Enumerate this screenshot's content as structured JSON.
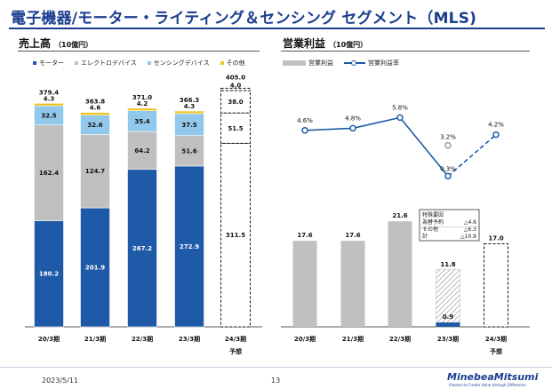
{
  "page": {
    "title": "電子機器/モーター・ライティング＆センシング セグメント（MLS)",
    "footer_date": "2023/5/11",
    "page_number": "13",
    "logo_text": "MinebeaMitsumi",
    "logo_tagline": "Passion to Create Value through Difference"
  },
  "chart_data": [
    {
      "type": "stacked_bar",
      "title": "売上高",
      "unit": "（10億円）",
      "categories": [
        "20/3期",
        "21/3期",
        "22/3期",
        "23/3期",
        "24/3期"
      ],
      "category_notes": [
        "",
        "",
        "",
        "",
        "予想"
      ],
      "forecast_index": 4,
      "series": [
        {
          "name": "モーター",
          "color": "#1f5aa8",
          "values": [
            180.2,
            201.9,
            267.2,
            272.9,
            311.5
          ]
        },
        {
          "name": "エレクトロデバイス",
          "color": "#c0c0c0",
          "values": [
            162.4,
            124.7,
            64.2,
            51.6,
            51.5
          ]
        },
        {
          "name": "センシングデバイス",
          "color": "#92c8ec",
          "values": [
            32.5,
            32.6,
            35.4,
            37.5,
            38.0
          ]
        },
        {
          "name": "その他",
          "color": "#f0c420",
          "values": [
            4.3,
            4.6,
            4.2,
            4.3,
            4.0
          ]
        }
      ],
      "totals": [
        379.4,
        363.8,
        371.0,
        366.3,
        405.0
      ],
      "ylim": [
        0,
        410
      ]
    },
    {
      "type": "bar_line",
      "title": "営業利益",
      "unit": "（10億円）",
      "categories": [
        "20/3期",
        "21/3期",
        "22/3期",
        "23/3期",
        "24/3期"
      ],
      "category_notes": [
        "",
        "",
        "",
        "",
        "予想"
      ],
      "forecast_index": 4,
      "bar_series": {
        "name": "営業利益",
        "color": "#c0c0c0",
        "values": [
          17.6,
          17.6,
          21.6,
          0.9,
          17.0
        ]
      },
      "bar_ylim": [
        0,
        30
      ],
      "special_factors_bar": {
        "category_index": 3,
        "value": 11.8,
        "color": "#1f5aa8"
      },
      "line_series": {
        "name": "営業利益率",
        "color": "#1f5aa8",
        "values": [
          4.6,
          4.8,
          5.8,
          0.3,
          4.2
        ],
        "labels": [
          "4.6%",
          "4.8%",
          "5.8%",
          "0.3%",
          "4.2%"
        ],
        "alt_point": {
          "index": 3,
          "value": 3.2,
          "label": "3.2%",
          "color": "#999999"
        }
      },
      "line_ylim": [
        -2,
        14
      ],
      "annotation": {
        "title": "特殊要因",
        "rows": [
          {
            "label": "為替予約",
            "value": "△4.6"
          },
          {
            "label": "その他",
            "value": "△6.3"
          },
          {
            "label": "計",
            "value": "△10.9"
          }
        ]
      }
    }
  ]
}
